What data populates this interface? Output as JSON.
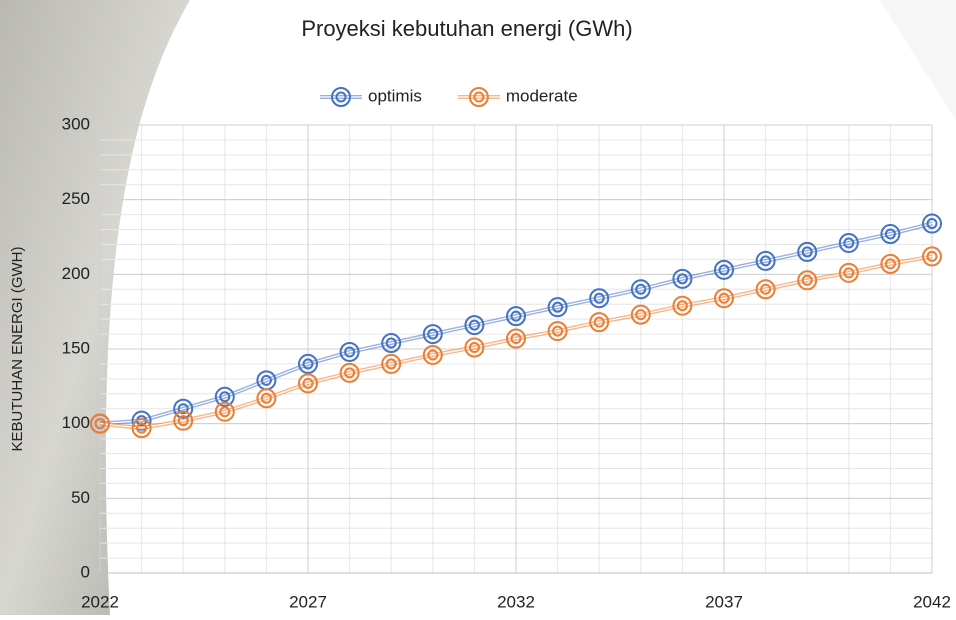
{
  "chart_data": {
    "type": "line",
    "title": "Proyeksi kebutuhan energi (GWh)",
    "y_label": "KEBUTUHAN ENERGI (GWH)",
    "x": [
      2022,
      2023,
      2024,
      2025,
      2026,
      2027,
      2028,
      2029,
      2030,
      2031,
      2032,
      2033,
      2034,
      2035,
      2036,
      2037,
      2038,
      2039,
      2040,
      2041,
      2042
    ],
    "series": [
      {
        "name": "optimis",
        "color": "#4472c4",
        "values": [
          100,
          102,
          110,
          118,
          129,
          140,
          148,
          154,
          160,
          166,
          172,
          178,
          184,
          190,
          197,
          203,
          209,
          215,
          221,
          227,
          234
        ]
      },
      {
        "name": "moderate",
        "color": "#ed7d31",
        "values": [
          100,
          97,
          102,
          108,
          117,
          127,
          134,
          140,
          146,
          151,
          157,
          162,
          168,
          173,
          179,
          184,
          190,
          196,
          201,
          207,
          212
        ]
      }
    ],
    "xlim": [
      2022,
      2042
    ],
    "xticks": [
      2022,
      2027,
      2032,
      2037,
      2042
    ],
    "ylim": [
      0,
      300
    ],
    "yticks": [
      0,
      50,
      100,
      150,
      200,
      250,
      300
    ],
    "grid": true,
    "minor_grid": {
      "x": 1,
      "y": 10
    },
    "legend": "top"
  }
}
